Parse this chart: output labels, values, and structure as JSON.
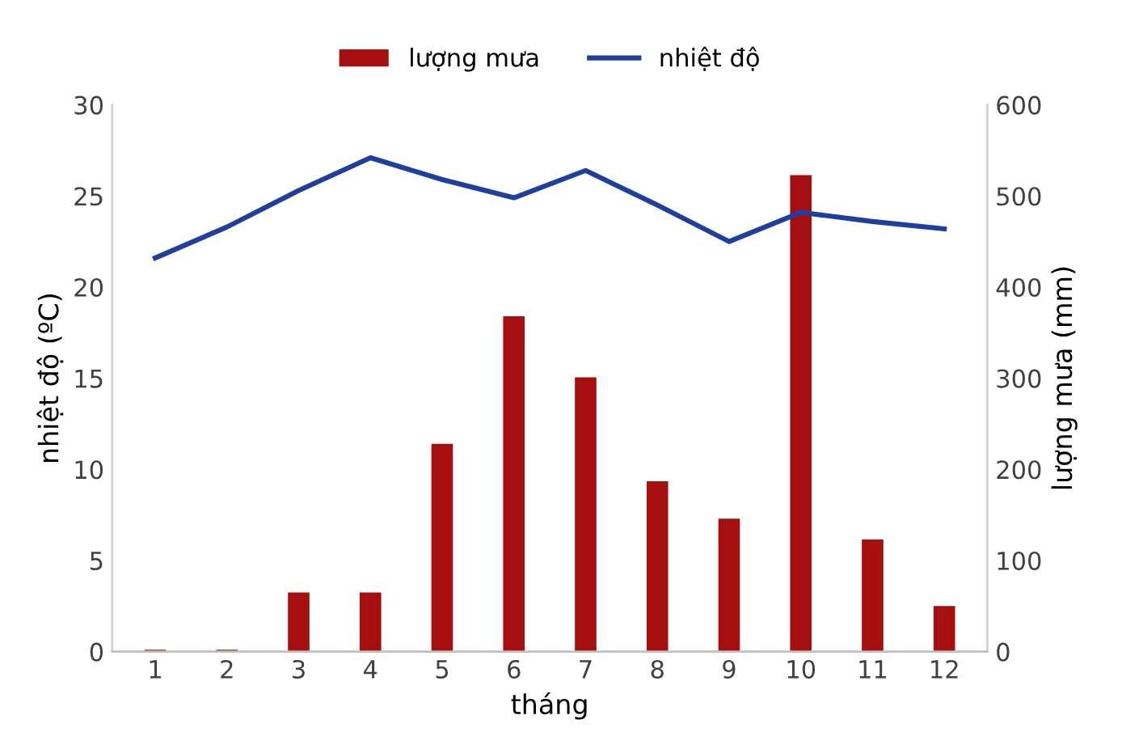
{
  "chart_data": {
    "type": "bar",
    "xlabel": "tháng",
    "ylabel": "nhiệt độ (ºC)",
    "y2label": "lượng mưa (mm)",
    "categories": [
      "1",
      "2",
      "3",
      "4",
      "5",
      "6",
      "7",
      "8",
      "9",
      "10",
      "11",
      "12"
    ],
    "series": [
      {
        "name": "lượng mưa",
        "axis": "y2",
        "color": "#a50f0f",
        "values": [
          2,
          2,
          65,
          65,
          228,
          368,
          301,
          187,
          146,
          523,
          123,
          50
        ]
      },
      {
        "name": "nhiệt độ",
        "type": "line",
        "axis": "y",
        "color": "#1f3f9f",
        "values": [
          21.6,
          23.3,
          25.3,
          27.1,
          25.9,
          24.9,
          26.4,
          24.5,
          22.5,
          24.1,
          23.6,
          23.2
        ]
      }
    ],
    "ylim": [
      0,
      30
    ],
    "yticks": [
      0,
      5,
      10,
      15,
      20,
      25,
      30
    ],
    "y2lim": [
      0,
      600
    ],
    "y2ticks": [
      0,
      100,
      200,
      300,
      400,
      500,
      600
    ],
    "grid": false,
    "legend": "top",
    "marker": "none",
    "line_style": "solid"
  }
}
